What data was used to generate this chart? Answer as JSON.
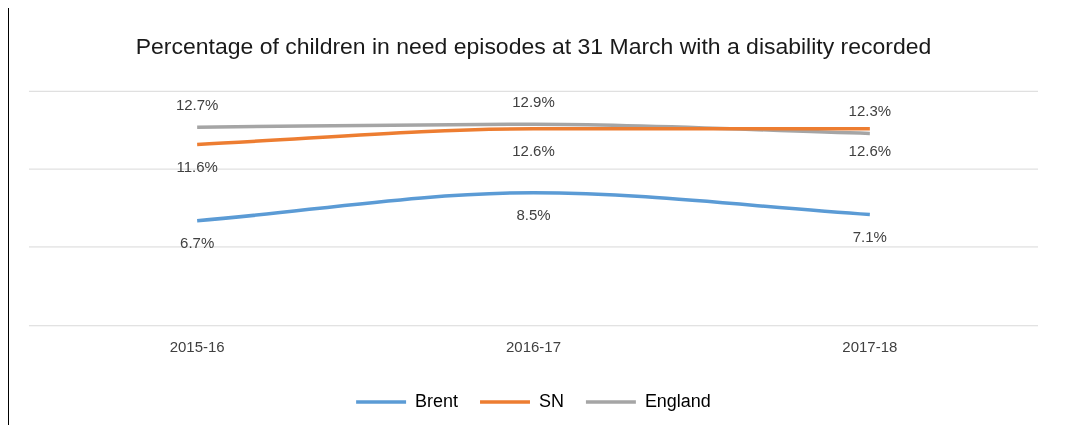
{
  "chart_data": {
    "type": "line",
    "title": "Percentage of children in need episodes at 31 March with a disability recorded",
    "categories": [
      "2015-16",
      "2016-17",
      "2017-18"
    ],
    "series": [
      {
        "name": "Brent",
        "color": "#5b9bd5",
        "values": [
          6.7,
          8.5,
          7.1
        ],
        "value_labels": [
          "6.7%",
          "8.5%",
          "7.1%"
        ]
      },
      {
        "name": "SN",
        "color": "#ed7d31",
        "values": [
          11.6,
          12.6,
          12.6
        ],
        "value_labels": [
          "11.6%",
          "12.6%",
          "12.6%"
        ]
      },
      {
        "name": "England",
        "color": "#a5a5a5",
        "values": [
          12.7,
          12.9,
          12.3
        ],
        "value_labels": [
          "12.7%",
          "12.9%",
          "12.3%"
        ]
      }
    ],
    "ylim": [
      0,
      15
    ],
    "yticks": [
      0,
      5,
      10,
      15
    ],
    "grid": "y",
    "tick_labels": "x",
    "legend": "bottom",
    "marker": "none",
    "line_style": "solid"
  }
}
